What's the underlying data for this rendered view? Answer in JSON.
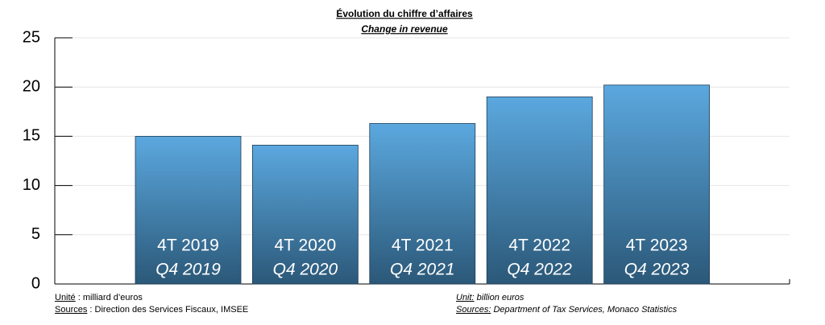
{
  "chart_data": {
    "type": "bar",
    "title": "Évolution du chiffre d’affaires",
    "subtitle": "Change in revenue",
    "categories": [
      "4T 2019",
      "4T 2020",
      "4T 2021",
      "4T 2022",
      "4T 2023"
    ],
    "categories_en": [
      "Q4 2019",
      "Q4 2020",
      "Q4 2021",
      "Q4 2022",
      "Q4 2023"
    ],
    "values": [
      15.0,
      14.1,
      16.3,
      19.0,
      20.2
    ],
    "color": "#5ba8df",
    "ylim": [
      0,
      25
    ],
    "yticks": [
      0,
      5,
      10,
      15,
      20,
      25
    ],
    "grid": true
  },
  "notes": {
    "unit_fr": {
      "label": "Unité",
      "text": " : milliard d’euros"
    },
    "sources_fr": {
      "label": "Sources",
      "text": " : Direction des Services Fiscaux, IMSEE"
    },
    "unit_en": {
      "label": "Unit:",
      "text": " billion euros"
    },
    "sources_en": {
      "label": "Sources:",
      "text": " Department of Tax Services, Monaco Statistics"
    }
  }
}
